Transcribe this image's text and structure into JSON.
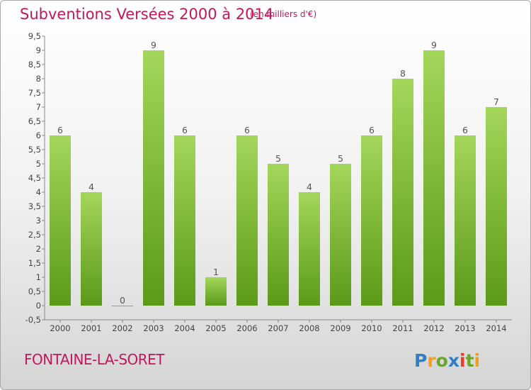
{
  "header": {
    "title": "Subventions Versées 2000 à 2014",
    "subtitle": "(en milliers d'€)"
  },
  "footer": {
    "commune": "FONTAINE-LA-SORET",
    "logo_text": "Proxiti"
  },
  "colors": {
    "title": "#c2185b",
    "bar_top": "#a4d65a",
    "bar_bottom": "#5b9a18"
  },
  "chart_data": {
    "type": "bar",
    "title": "Subventions Versées 2000 à 2014",
    "categories": [
      "2000",
      "2001",
      "2002",
      "2003",
      "2004",
      "2005",
      "2006",
      "2007",
      "2008",
      "2009",
      "2010",
      "2011",
      "2012",
      "2013",
      "2014"
    ],
    "values": [
      6,
      4,
      0,
      9,
      6,
      1,
      6,
      5,
      4,
      5,
      6,
      8,
      9,
      6,
      7
    ],
    "ylim": [
      -0.5,
      9.5
    ],
    "yticks": [
      "-0,5",
      "0",
      "0,5",
      "1",
      "1,5",
      "2",
      "2,5",
      "3",
      "3,5",
      "4",
      "4,5",
      "5",
      "5,5",
      "6",
      "6,5",
      "7",
      "7,5",
      "8",
      "8,5",
      "9",
      "9,5"
    ],
    "grid": false,
    "legend": "none"
  }
}
